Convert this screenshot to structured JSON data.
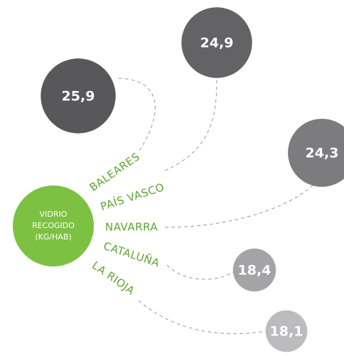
{
  "chart_data": {
    "type": "bubble",
    "center_label": [
      "VIDRIO",
      "RECOGIDO",
      "(KG/HAB)"
    ],
    "center_color": "#7dc142",
    "categories": [
      "BALEARES",
      "PAÍS VASCO",
      "NAVARRA",
      "CATALUÑA",
      "LA RIOJA"
    ],
    "values": [
      25.9,
      24.9,
      24.3,
      18.4,
      18.1
    ],
    "value_labels": [
      "25,9",
      "24,9",
      "24,3",
      "18,4",
      "18,1"
    ],
    "colors": [
      "#58585a",
      "#636365",
      "#7c7c7e",
      "#a4a4a6",
      "#bcbcbe"
    ]
  }
}
